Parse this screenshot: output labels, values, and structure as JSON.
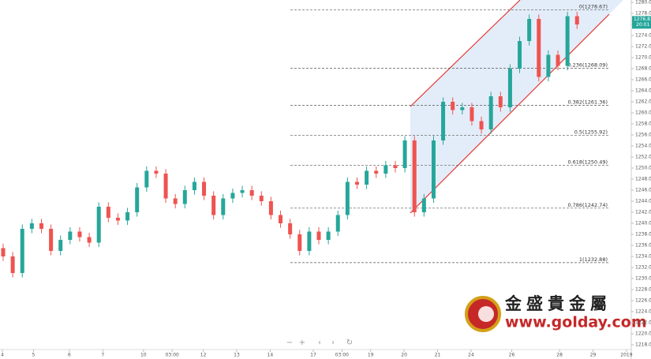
{
  "chart_data": {
    "type": "candlestick",
    "x": [
      0,
      1,
      2,
      3,
      4,
      5,
      6,
      7,
      8,
      9,
      10,
      11,
      12,
      13,
      14,
      15,
      16,
      17,
      18,
      19,
      20,
      21,
      22,
      23,
      24,
      25,
      26,
      27,
      28,
      29,
      30,
      31,
      32,
      33,
      34,
      35,
      36,
      37,
      38,
      39,
      40,
      41,
      42,
      43,
      44,
      45,
      46,
      47,
      48,
      49,
      50,
      51,
      52,
      53,
      54,
      55,
      56,
      57,
      58,
      59,
      60
    ],
    "open": [
      1235.5,
      1234,
      1231,
      1239,
      1240,
      1239,
      1235,
      1237,
      1238.5,
      1237.5,
      1236.5,
      1243,
      1241,
      1240.5,
      1242,
      1246.5,
      1249.5,
      1249,
      1244.5,
      1243.5,
      1246,
      1247.5,
      1245,
      1241.5,
      1244.5,
      1245.5,
      1246,
      1245,
      1244,
      1241.5,
      1240,
      1238,
      1235,
      1238.5,
      1237,
      1238.5,
      1241.5,
      1247.5,
      1247,
      1249.5,
      1249,
      1250.5,
      1250,
      1255,
      1242,
      1244.5,
      1255,
      1262,
      1260.5,
      1261,
      1258.5,
      1257,
      1263,
      1261,
      1268,
      1273,
      1277,
      1266.5,
      1270.5,
      1268.5,
      1277.5
    ],
    "high": [
      1236.3,
      1234.8,
      1239.8,
      1240.8,
      1240.8,
      1239.8,
      1237.8,
      1239.3,
      1239.3,
      1238.3,
      1243.8,
      1243.8,
      1241.8,
      1242.8,
      1247.3,
      1250.3,
      1250.3,
      1249.8,
      1245.3,
      1246.8,
      1248.3,
      1248.3,
      1245.8,
      1245.3,
      1246.3,
      1246.8,
      1246.8,
      1245.8,
      1244.8,
      1242.3,
      1240.8,
      1238.8,
      1239.3,
      1239.3,
      1239.3,
      1242.3,
      1248.3,
      1248.3,
      1250.3,
      1250.3,
      1251.3,
      1251.3,
      1255.8,
      1255.8,
      1245.3,
      1255.8,
      1262.8,
      1262.8,
      1261.8,
      1261.8,
      1259.3,
      1263.8,
      1263.8,
      1268.8,
      1273.8,
      1277.8,
      1277.8,
      1271.3,
      1271.3,
      1278.3,
      1278.3
    ],
    "low": [
      1233.2,
      1230.2,
      1230.2,
      1238.2,
      1238.2,
      1234.2,
      1234.2,
      1236.2,
      1236.7,
      1235.7,
      1235.7,
      1240.2,
      1239.7,
      1239.7,
      1241.2,
      1245.7,
      1248.2,
      1243.7,
      1242.7,
      1242.7,
      1245.2,
      1244.2,
      1240.7,
      1240.7,
      1243.7,
      1244.7,
      1244.2,
      1243.2,
      1240.7,
      1239.2,
      1237.2,
      1234.2,
      1234.2,
      1236.2,
      1236.2,
      1237.7,
      1240.7,
      1246.2,
      1246.2,
      1248.2,
      1248.2,
      1249.2,
      1249.2,
      1241.2,
      1241.2,
      1243.7,
      1254.2,
      1259.7,
      1259.7,
      1257.7,
      1256.2,
      1256.2,
      1260.2,
      1260.2,
      1267.2,
      1272.2,
      1265.7,
      1265.7,
      1267.7,
      1267.7,
      1275.2
    ],
    "close": [
      1234,
      1231,
      1239,
      1240,
      1239,
      1235,
      1237,
      1238.5,
      1237.5,
      1236.5,
      1243,
      1241,
      1240.5,
      1242,
      1246.5,
      1249.5,
      1249,
      1244.5,
      1243.5,
      1246,
      1247.5,
      1245,
      1241.5,
      1244.5,
      1245.5,
      1246,
      1245,
      1244,
      1241.5,
      1240,
      1238,
      1235,
      1238.5,
      1237,
      1238.5,
      1241.5,
      1247.5,
      1247,
      1249.5,
      1249,
      1250.5,
      1250,
      1255,
      1242,
      1244.5,
      1255,
      1262,
      1260.5,
      1261,
      1258.5,
      1257,
      1263,
      1261,
      1268,
      1273,
      1277,
      1266.5,
      1270.5,
      1268.5,
      1277.5,
      1276
    ],
    "up_color": "#26a69a",
    "down_color": "#ef5350",
    "xlim": [
      0,
      66
    ],
    "xticks": [
      {
        "value": 0.25,
        "label": "4"
      },
      {
        "value": 3.5,
        "label": "5"
      },
      {
        "value": 7.25,
        "label": "6"
      },
      {
        "value": 10.75,
        "label": "7"
      },
      {
        "value": 15,
        "label": "10"
      },
      {
        "value": 18,
        "label": "03:00"
      },
      {
        "value": 21.25,
        "label": "12"
      },
      {
        "value": 24.75,
        "label": "13"
      },
      {
        "value": 28.25,
        "label": "14"
      },
      {
        "value": 32.75,
        "label": "17"
      },
      {
        "value": 35.75,
        "label": "03:00"
      },
      {
        "value": 38.75,
        "label": "19"
      },
      {
        "value": 42.25,
        "label": "20"
      },
      {
        "value": 45.75,
        "label": "21"
      },
      {
        "value": 49.25,
        "label": "24"
      },
      {
        "value": 53.5,
        "label": "26"
      },
      {
        "value": 58.5,
        "label": "28"
      },
      {
        "value": 62,
        "label": "29"
      },
      {
        "value": 65.5,
        "label": "2019"
      }
    ],
    "ylim": [
      1215.43,
      1280.43
    ],
    "yticks": [
      {
        "value": 1218,
        "label": "1218.00"
      },
      {
        "value": 1220,
        "label": "1220.00"
      },
      {
        "value": 1222,
        "label": "1222.00"
      },
      {
        "value": 1224,
        "label": "1224.00"
      },
      {
        "value": 1226,
        "label": "1226.00"
      },
      {
        "value": 1228,
        "label": "1228.00"
      },
      {
        "value": 1230,
        "label": "1230.00"
      },
      {
        "value": 1232,
        "label": "1232.00"
      },
      {
        "value": 1234,
        "label": "1234.00"
      },
      {
        "value": 1236,
        "label": "1236.00"
      },
      {
        "value": 1238,
        "label": "1238.00"
      },
      {
        "value": 1240,
        "label": "1240.00"
      },
      {
        "value": 1242,
        "label": "1242.00"
      },
      {
        "value": 1244,
        "label": "1244.00"
      },
      {
        "value": 1246,
        "label": "1246.00"
      },
      {
        "value": 1248,
        "label": "1248.00"
      },
      {
        "value": 1250,
        "label": "1250.00"
      },
      {
        "value": 1252,
        "label": "1252.00"
      },
      {
        "value": 1254,
        "label": "1254.00"
      },
      {
        "value": 1256,
        "label": "1256.00"
      },
      {
        "value": 1258,
        "label": "1258.00"
      },
      {
        "value": 1260,
        "label": "1260.00"
      },
      {
        "value": 1262,
        "label": "1262.00"
      },
      {
        "value": 1264,
        "label": "1264.00"
      },
      {
        "value": 1266,
        "label": "1266.00"
      },
      {
        "value": 1268,
        "label": "1268.00"
      },
      {
        "value": 1270,
        "label": "1270.00"
      },
      {
        "value": 1272,
        "label": "1272.00"
      },
      {
        "value": 1274,
        "label": "1274.00"
      },
      {
        "value": 1276,
        "label": "1276.00"
      },
      {
        "value": 1278,
        "label": "1278.00"
      },
      {
        "value": 1280,
        "label": "1280.00"
      }
    ],
    "fib_levels": [
      {
        "label": "0(1278.67)",
        "value": 1278.67
      },
      {
        "label": "0.236(1268.09)",
        "value": 1268.09
      },
      {
        "label": "0.382(1261.36)",
        "value": 1261.36
      },
      {
        "label": "0.5(1255.92)",
        "value": 1255.92
      },
      {
        "label": "0.618(1250.49)",
        "value": 1250.49
      },
      {
        "label": "0.786(1242.74)",
        "value": 1242.74
      },
      {
        "label": "1(1232.88)",
        "value": 1232.88
      }
    ],
    "last_price": {
      "value": 1276.81,
      "label": "1276.81",
      "time": "20:01"
    }
  },
  "toolbar": [
    "−",
    "+",
    "‹",
    "›",
    "↻"
  ],
  "watermark": {
    "name": "金盛貴金屬",
    "url": "www.golday.com"
  }
}
